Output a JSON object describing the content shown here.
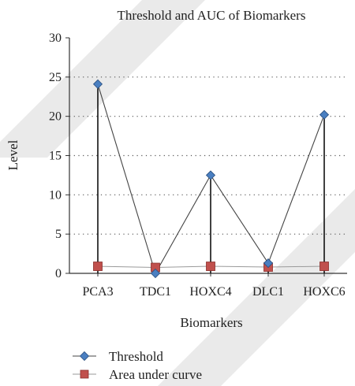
{
  "chart_data": {
    "type": "line",
    "title": "Threshold and AUC of Biomarkers",
    "xlabel": "Biomarkers",
    "ylabel": "Level",
    "categories": [
      "PCA3",
      "TDC1",
      "HOXC4",
      "DLC1",
      "HOXC6"
    ],
    "ylim": [
      0,
      30
    ],
    "yticks": [
      0,
      5,
      10,
      15,
      20,
      25,
      30
    ],
    "grid": "horizontal-dotted",
    "legend_position": "bottom",
    "series": [
      {
        "name": "Threshold",
        "values": [
          24.1,
          0.0,
          12.5,
          1.3,
          20.2
        ],
        "color": "#4a7fc1",
        "marker": "diamond",
        "drop_lines": true
      },
      {
        "name": "Area under curve",
        "values": [
          0.9,
          0.75,
          0.9,
          0.8,
          0.9
        ],
        "color": "#c0504d",
        "marker": "square"
      }
    ]
  }
}
